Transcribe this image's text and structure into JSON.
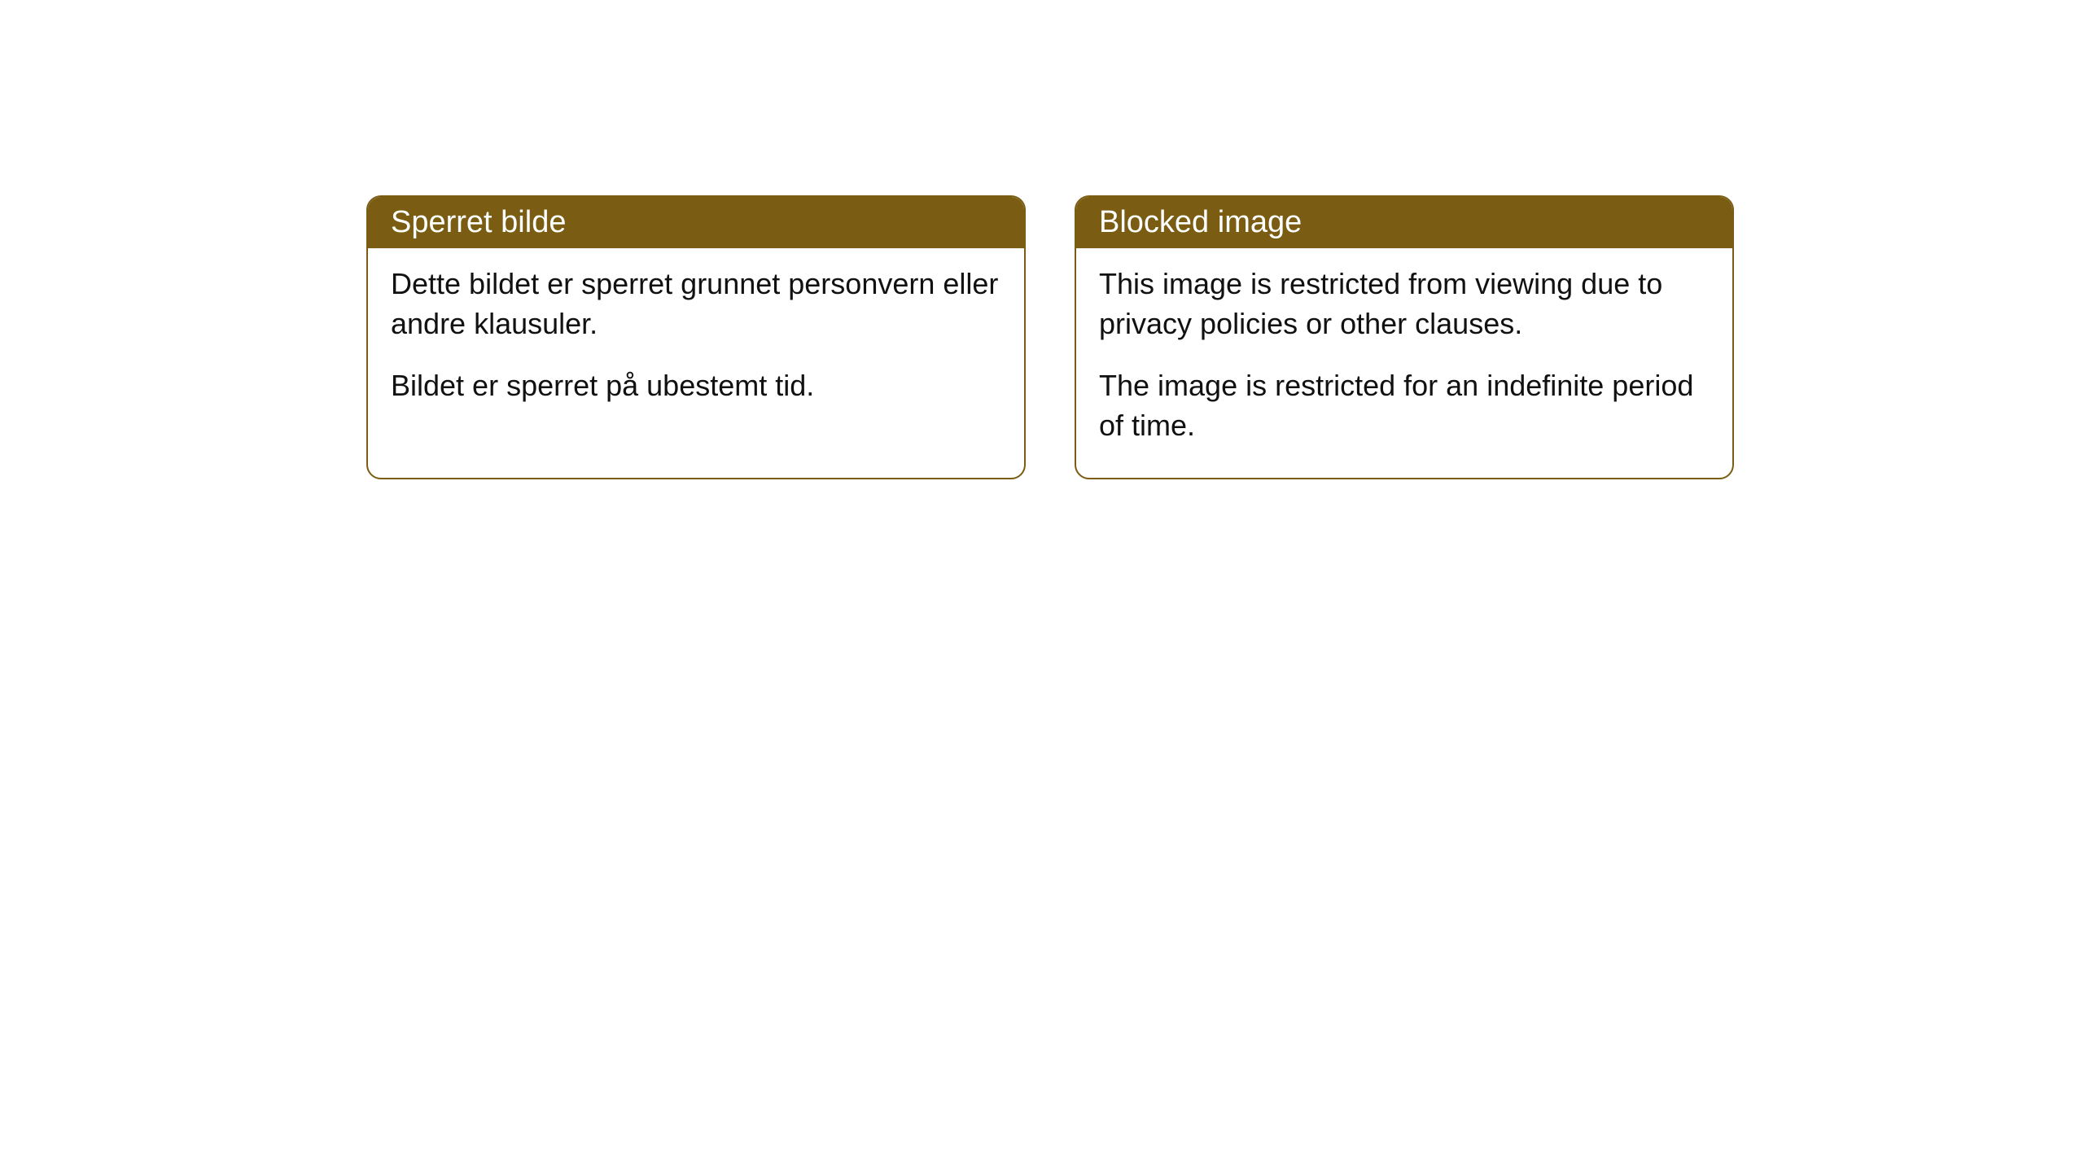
{
  "cards": [
    {
      "title": "Sperret bilde",
      "paragraph1": "Dette bildet er sperret grunnet personvern eller andre klausuler.",
      "paragraph2": "Bildet er sperret på ubestemt tid."
    },
    {
      "title": "Blocked image",
      "paragraph1": "This image is restricted from viewing due to privacy policies or other clauses.",
      "paragraph2": "The image is restricted for an indefinite period of time."
    }
  ],
  "styling": {
    "header_background_color": "#7a5d13",
    "header_text_color": "#ffffff",
    "border_color": "#7a5d13",
    "body_background_color": "#ffffff",
    "body_text_color": "#111111",
    "border_radius": 18,
    "header_fontsize": 38,
    "body_fontsize": 36
  }
}
